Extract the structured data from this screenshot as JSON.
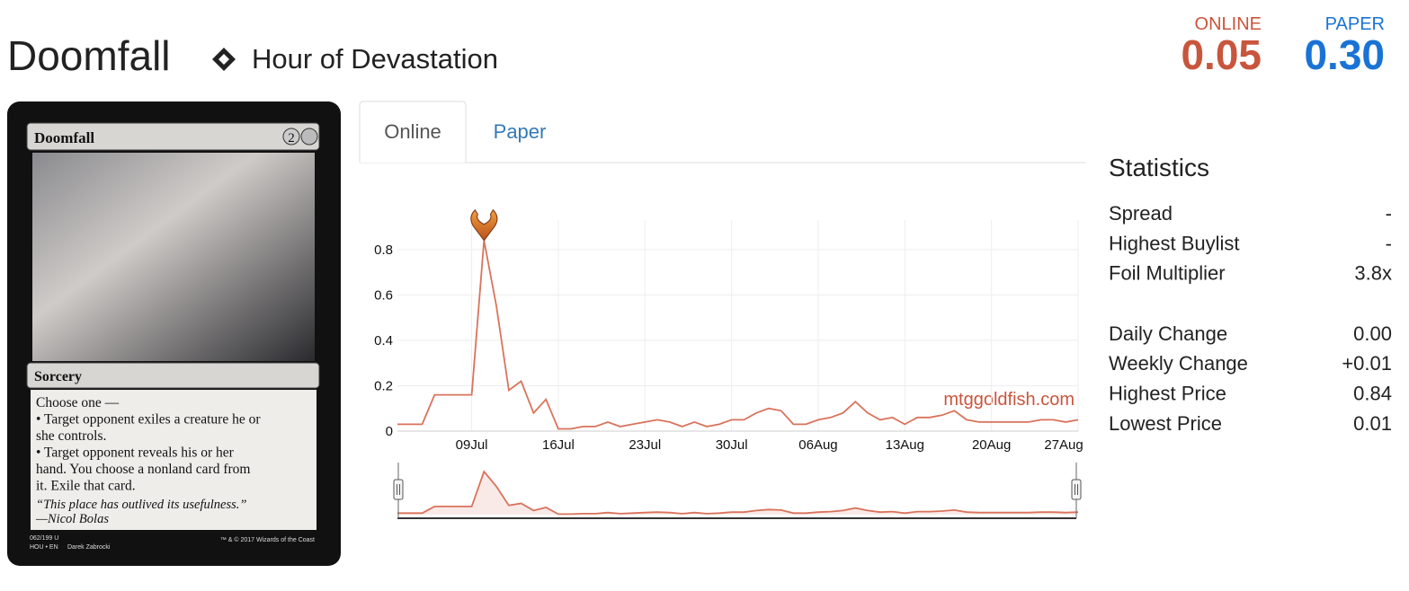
{
  "header": {
    "title": "Doomfall",
    "set": "Hour of Devastation",
    "prices": [
      {
        "label": "ONLINE",
        "value": "0.05"
      },
      {
        "label": "PAPER",
        "value": "0.30"
      }
    ]
  },
  "card": {
    "name": "Doomfall",
    "mana": "2",
    "type": "Sorcery",
    "rules": [
      "Choose one —",
      "• Target opponent exiles a creature he or",
      "she controls.",
      "• Target opponent reveals his or her",
      "hand. You choose a nonland card from",
      "it. Exile that card."
    ],
    "flavor": [
      "“This place has outlived its usefulness.”",
      "—Nicol Bolas"
    ],
    "footer": [
      "062/199 U",
      "HOU • EN",
      "Darek Zabrocki",
      "™ & © 2017 Wizards of the Coast"
    ]
  },
  "tabs": [
    "Online",
    "Paper"
  ],
  "statistics": {
    "title": "Statistics",
    "groups": [
      [
        {
          "label": "Spread",
          "value": "-"
        },
        {
          "label": "Highest Buylist",
          "value": "-"
        },
        {
          "label": "Foil Multiplier",
          "value": "3.8x"
        }
      ],
      [
        {
          "label": "Daily Change",
          "value": "0.00"
        },
        {
          "label": "Weekly Change",
          "value": "+0.01"
        },
        {
          "label": "Highest Price",
          "value": "0.84"
        },
        {
          "label": "Lowest Price",
          "value": "0.01"
        }
      ]
    ]
  },
  "chart_data": {
    "type": "line",
    "watermark": "mtggoldfish.com",
    "categories": [
      null,
      null,
      null,
      null,
      null,
      null,
      "09Jul",
      null,
      null,
      null,
      null,
      null,
      null,
      "16Jul",
      null,
      null,
      null,
      null,
      null,
      null,
      "23Jul",
      null,
      null,
      null,
      null,
      null,
      null,
      "30Jul",
      null,
      null,
      null,
      null,
      null,
      null,
      "06Aug",
      null,
      null,
      null,
      null,
      null,
      null,
      "13Aug",
      null,
      null,
      null,
      null,
      null,
      null,
      "20Aug",
      null,
      null,
      null,
      null,
      null,
      null,
      "27Aug"
    ],
    "series": [
      {
        "name": "Online",
        "color": "#d9735c",
        "values": [
          0.03,
          0.03,
          0.03,
          0.16,
          0.16,
          0.16,
          0.16,
          0.84,
          0.55,
          0.18,
          0.22,
          0.08,
          0.14,
          0.01,
          0.01,
          0.02,
          0.02,
          0.04,
          0.02,
          0.03,
          0.04,
          0.05,
          0.04,
          0.02,
          0.04,
          0.02,
          0.03,
          0.05,
          0.05,
          0.08,
          0.1,
          0.09,
          0.03,
          0.03,
          0.05,
          0.06,
          0.08,
          0.13,
          0.08,
          0.05,
          0.06,
          0.03,
          0.06,
          0.06,
          0.07,
          0.09,
          0.05,
          0.04,
          0.04,
          0.04,
          0.04,
          0.04,
          0.05,
          0.05,
          0.04,
          0.05
        ]
      }
    ],
    "ylim": [
      0,
      0.93
    ],
    "yticks": [
      0,
      0.2,
      0.4,
      0.6,
      0.8
    ],
    "grid": true
  }
}
